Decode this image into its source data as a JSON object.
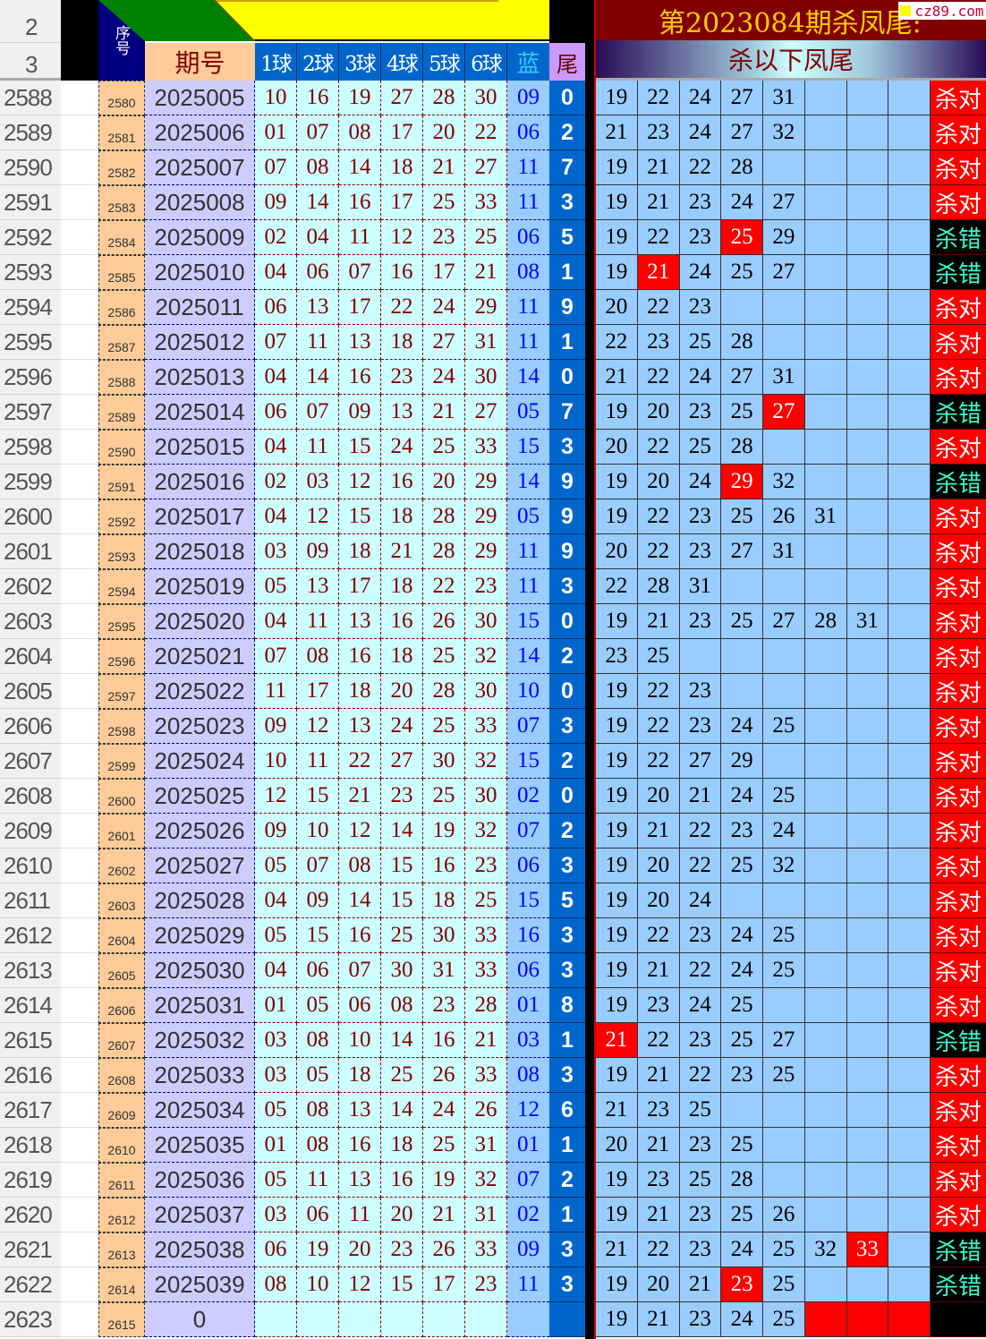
{
  "header": {
    "row_numbers": [
      "2",
      "3"
    ],
    "seq_label": "序号",
    "period_label": "期号",
    "ball_labels": [
      "1球",
      "2球",
      "3球",
      "4球",
      "5球",
      "6球"
    ],
    "blue_label": "蓝",
    "tail_label": "尾",
    "title": "第2023084期杀凤尾:",
    "subtitle": "杀以下凤尾",
    "watermark": "cz89.com"
  },
  "colors": {
    "hit": "#ff0000",
    "result_ok_bg": "#ff0000",
    "result_bad_bg": "#000000",
    "result_bad_text": "#33ffcc",
    "title_bg": "#800000",
    "title_text": "#ffcc00",
    "tail_bg": "#0066cc"
  },
  "rows": [
    {
      "r": "2588",
      "s": "2580",
      "p": "2025005",
      "b": [
        "10",
        "16",
        "19",
        "27",
        "28",
        "30"
      ],
      "blue": "09",
      "t": "0",
      "k": [
        "19",
        "22",
        "24",
        "27",
        "31"
      ],
      "hit": -1,
      "res": "杀对"
    },
    {
      "r": "2589",
      "s": "2581",
      "p": "2025006",
      "b": [
        "01",
        "07",
        "08",
        "17",
        "20",
        "22"
      ],
      "blue": "06",
      "t": "2",
      "k": [
        "21",
        "23",
        "24",
        "27",
        "32"
      ],
      "hit": -1,
      "res": "杀对"
    },
    {
      "r": "2590",
      "s": "2582",
      "p": "2025007",
      "b": [
        "07",
        "08",
        "14",
        "18",
        "21",
        "27"
      ],
      "blue": "11",
      "t": "7",
      "k": [
        "19",
        "21",
        "22",
        "28"
      ],
      "hit": -1,
      "res": "杀对"
    },
    {
      "r": "2591",
      "s": "2583",
      "p": "2025008",
      "b": [
        "09",
        "14",
        "16",
        "17",
        "25",
        "33"
      ],
      "blue": "11",
      "t": "3",
      "k": [
        "19",
        "21",
        "23",
        "24",
        "27"
      ],
      "hit": -1,
      "res": "杀对"
    },
    {
      "r": "2592",
      "s": "2584",
      "p": "2025009",
      "b": [
        "02",
        "04",
        "11",
        "12",
        "23",
        "25"
      ],
      "blue": "06",
      "t": "5",
      "k": [
        "19",
        "22",
        "23",
        "25",
        "29"
      ],
      "hit": 3,
      "res": "杀错"
    },
    {
      "r": "2593",
      "s": "2585",
      "p": "2025010",
      "b": [
        "04",
        "06",
        "07",
        "16",
        "17",
        "21"
      ],
      "blue": "08",
      "t": "1",
      "k": [
        "19",
        "21",
        "24",
        "25",
        "27"
      ],
      "hit": 1,
      "res": "杀错"
    },
    {
      "r": "2594",
      "s": "2586",
      "p": "2025011",
      "b": [
        "06",
        "13",
        "17",
        "22",
        "24",
        "29"
      ],
      "blue": "11",
      "t": "9",
      "k": [
        "20",
        "22",
        "23"
      ],
      "hit": -1,
      "res": "杀对"
    },
    {
      "r": "2595",
      "s": "2587",
      "p": "2025012",
      "b": [
        "07",
        "11",
        "13",
        "18",
        "27",
        "31"
      ],
      "blue": "11",
      "t": "1",
      "k": [
        "22",
        "23",
        "25",
        "28"
      ],
      "hit": -1,
      "res": "杀对"
    },
    {
      "r": "2596",
      "s": "2588",
      "p": "2025013",
      "b": [
        "04",
        "14",
        "16",
        "23",
        "24",
        "30"
      ],
      "blue": "14",
      "t": "0",
      "k": [
        "21",
        "22",
        "24",
        "27",
        "31"
      ],
      "hit": -1,
      "res": "杀对"
    },
    {
      "r": "2597",
      "s": "2589",
      "p": "2025014",
      "b": [
        "06",
        "07",
        "09",
        "13",
        "21",
        "27"
      ],
      "blue": "05",
      "t": "7",
      "k": [
        "19",
        "20",
        "23",
        "25",
        "27"
      ],
      "hit": 4,
      "res": "杀错"
    },
    {
      "r": "2598",
      "s": "2590",
      "p": "2025015",
      "b": [
        "04",
        "11",
        "15",
        "24",
        "25",
        "33"
      ],
      "blue": "15",
      "t": "3",
      "k": [
        "20",
        "22",
        "25",
        "28"
      ],
      "hit": -1,
      "res": "杀对"
    },
    {
      "r": "2599",
      "s": "2591",
      "p": "2025016",
      "b": [
        "02",
        "03",
        "12",
        "16",
        "20",
        "29"
      ],
      "blue": "14",
      "t": "9",
      "k": [
        "19",
        "20",
        "24",
        "29",
        "32"
      ],
      "hit": 3,
      "res": "杀错"
    },
    {
      "r": "2600",
      "s": "2592",
      "p": "2025017",
      "b": [
        "04",
        "12",
        "15",
        "18",
        "28",
        "29"
      ],
      "blue": "05",
      "t": "9",
      "k": [
        "19",
        "22",
        "23",
        "25",
        "26",
        "31"
      ],
      "hit": -1,
      "res": "杀对"
    },
    {
      "r": "2601",
      "s": "2593",
      "p": "2025018",
      "b": [
        "03",
        "09",
        "18",
        "21",
        "28",
        "29"
      ],
      "blue": "11",
      "t": "9",
      "k": [
        "20",
        "22",
        "23",
        "27",
        "31"
      ],
      "hit": -1,
      "res": "杀对"
    },
    {
      "r": "2602",
      "s": "2594",
      "p": "2025019",
      "b": [
        "05",
        "13",
        "17",
        "18",
        "22",
        "23"
      ],
      "blue": "11",
      "t": "3",
      "k": [
        "22",
        "28",
        "31"
      ],
      "hit": -1,
      "res": "杀对"
    },
    {
      "r": "2603",
      "s": "2595",
      "p": "2025020",
      "b": [
        "04",
        "11",
        "13",
        "16",
        "26",
        "30"
      ],
      "blue": "15",
      "t": "0",
      "k": [
        "19",
        "21",
        "23",
        "25",
        "27",
        "28",
        "31"
      ],
      "hit": -1,
      "res": "杀对"
    },
    {
      "r": "2604",
      "s": "2596",
      "p": "2025021",
      "b": [
        "07",
        "08",
        "16",
        "18",
        "25",
        "32"
      ],
      "blue": "14",
      "t": "2",
      "k": [
        "23",
        "25"
      ],
      "hit": -1,
      "res": "杀对"
    },
    {
      "r": "2605",
      "s": "2597",
      "p": "2025022",
      "b": [
        "11",
        "17",
        "18",
        "20",
        "28",
        "30"
      ],
      "blue": "10",
      "t": "0",
      "k": [
        "19",
        "22",
        "23"
      ],
      "hit": -1,
      "res": "杀对"
    },
    {
      "r": "2606",
      "s": "2598",
      "p": "2025023",
      "b": [
        "09",
        "12",
        "13",
        "24",
        "25",
        "33"
      ],
      "blue": "07",
      "t": "3",
      "k": [
        "19",
        "22",
        "23",
        "24",
        "25"
      ],
      "hit": -1,
      "res": "杀对"
    },
    {
      "r": "2607",
      "s": "2599",
      "p": "2025024",
      "b": [
        "10",
        "11",
        "22",
        "27",
        "30",
        "32"
      ],
      "blue": "15",
      "t": "2",
      "k": [
        "19",
        "22",
        "27",
        "29"
      ],
      "hit": -1,
      "res": "杀对"
    },
    {
      "r": "2608",
      "s": "2600",
      "p": "2025025",
      "b": [
        "12",
        "15",
        "21",
        "23",
        "25",
        "30"
      ],
      "blue": "02",
      "t": "0",
      "k": [
        "19",
        "20",
        "21",
        "24",
        "25"
      ],
      "hit": -1,
      "res": "杀对"
    },
    {
      "r": "2609",
      "s": "2601",
      "p": "2025026",
      "b": [
        "09",
        "10",
        "12",
        "14",
        "19",
        "32"
      ],
      "blue": "07",
      "t": "2",
      "k": [
        "19",
        "21",
        "22",
        "23",
        "24"
      ],
      "hit": -1,
      "res": "杀对"
    },
    {
      "r": "2610",
      "s": "2602",
      "p": "2025027",
      "b": [
        "05",
        "07",
        "08",
        "15",
        "16",
        "23"
      ],
      "blue": "06",
      "t": "3",
      "k": [
        "19",
        "20",
        "22",
        "25",
        "32"
      ],
      "hit": -1,
      "res": "杀对"
    },
    {
      "r": "2611",
      "s": "2603",
      "p": "2025028",
      "b": [
        "04",
        "09",
        "14",
        "15",
        "18",
        "25"
      ],
      "blue": "15",
      "t": "5",
      "k": [
        "19",
        "20",
        "24"
      ],
      "hit": -1,
      "res": "杀对"
    },
    {
      "r": "2612",
      "s": "2604",
      "p": "2025029",
      "b": [
        "05",
        "15",
        "16",
        "25",
        "30",
        "33"
      ],
      "blue": "16",
      "t": "3",
      "k": [
        "19",
        "22",
        "23",
        "24",
        "25"
      ],
      "hit": -1,
      "res": "杀对"
    },
    {
      "r": "2613",
      "s": "2605",
      "p": "2025030",
      "b": [
        "04",
        "06",
        "07",
        "30",
        "31",
        "33"
      ],
      "blue": "06",
      "t": "3",
      "k": [
        "19",
        "21",
        "22",
        "24",
        "25"
      ],
      "hit": -1,
      "res": "杀对"
    },
    {
      "r": "2614",
      "s": "2606",
      "p": "2025031",
      "b": [
        "01",
        "05",
        "06",
        "08",
        "23",
        "28"
      ],
      "blue": "01",
      "t": "8",
      "k": [
        "19",
        "23",
        "24",
        "25"
      ],
      "hit": -1,
      "res": "杀对"
    },
    {
      "r": "2615",
      "s": "2607",
      "p": "2025032",
      "b": [
        "03",
        "08",
        "10",
        "14",
        "16",
        "21"
      ],
      "blue": "03",
      "t": "1",
      "k": [
        "21",
        "22",
        "23",
        "25",
        "27"
      ],
      "hit": 0,
      "res": "杀错"
    },
    {
      "r": "2616",
      "s": "2608",
      "p": "2025033",
      "b": [
        "03",
        "05",
        "18",
        "25",
        "26",
        "33"
      ],
      "blue": "08",
      "t": "3",
      "k": [
        "19",
        "21",
        "22",
        "23",
        "25"
      ],
      "hit": -1,
      "res": "杀对"
    },
    {
      "r": "2617",
      "s": "2609",
      "p": "2025034",
      "b": [
        "05",
        "08",
        "13",
        "14",
        "24",
        "26"
      ],
      "blue": "12",
      "t": "6",
      "k": [
        "21",
        "23",
        "25"
      ],
      "hit": -1,
      "res": "杀对"
    },
    {
      "r": "2618",
      "s": "2610",
      "p": "2025035",
      "b": [
        "01",
        "08",
        "16",
        "18",
        "25",
        "31"
      ],
      "blue": "01",
      "t": "1",
      "k": [
        "20",
        "21",
        "23",
        "25"
      ],
      "hit": -1,
      "res": "杀对"
    },
    {
      "r": "2619",
      "s": "2611",
      "p": "2025036",
      "b": [
        "05",
        "11",
        "13",
        "16",
        "19",
        "32"
      ],
      "blue": "07",
      "t": "2",
      "k": [
        "19",
        "23",
        "25",
        "28"
      ],
      "hit": -1,
      "res": "杀对"
    },
    {
      "r": "2620",
      "s": "2612",
      "p": "2025037",
      "b": [
        "03",
        "06",
        "11",
        "20",
        "21",
        "31"
      ],
      "blue": "02",
      "t": "1",
      "k": [
        "19",
        "21",
        "23",
        "25",
        "26"
      ],
      "hit": -1,
      "res": "杀对"
    },
    {
      "r": "2621",
      "s": "2613",
      "p": "2025038",
      "b": [
        "06",
        "19",
        "20",
        "23",
        "26",
        "33"
      ],
      "blue": "09",
      "t": "3",
      "k": [
        "21",
        "22",
        "23",
        "24",
        "25",
        "32",
        "33"
      ],
      "hit": 6,
      "res": "杀错"
    },
    {
      "r": "2622",
      "s": "2614",
      "p": "2025039",
      "b": [
        "08",
        "10",
        "12",
        "15",
        "17",
        "23"
      ],
      "blue": "11",
      "t": "3",
      "k": [
        "19",
        "20",
        "21",
        "23",
        "25"
      ],
      "hit": 3,
      "res": "杀错"
    },
    {
      "r": "2623",
      "s": "2615",
      "p": "0",
      "b": [
        "",
        "",
        "",
        "",
        "",
        ""
      ],
      "blue": "",
      "t": "",
      "k": [
        "19",
        "21",
        "23",
        "24",
        "25"
      ],
      "hit": -1,
      "res": "",
      "pending": true
    }
  ]
}
